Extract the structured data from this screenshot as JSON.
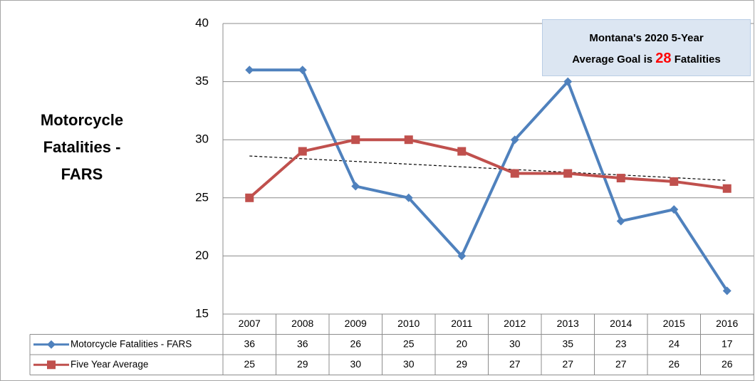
{
  "chart_data": {
    "type": "line",
    "title": "Motorcycle Fatalities - FARS",
    "annotation": {
      "line1": "Montana's 2020 5-Year",
      "line2_start": "Average Goal is",
      "goal": 28,
      "line2_end": "Fatalities"
    },
    "categories": [
      "2007",
      "2008",
      "2009",
      "2010",
      "2011",
      "2012",
      "2013",
      "2014",
      "2015",
      "2016"
    ],
    "series": [
      {
        "name": "Motorcycle Fatalities - FARS",
        "color": "#4f81bd",
        "marker": "diamond",
        "values": [
          36,
          36,
          26,
          25,
          20,
          30,
          35,
          23,
          24,
          17
        ]
      },
      {
        "name": "Five Year Average",
        "color": "#c0504d",
        "marker": "square",
        "values": [
          25,
          29,
          30,
          30,
          29,
          27.1,
          27.1,
          26.7,
          26.4,
          25.8
        ],
        "value_labels": [
          "25",
          "29",
          "30",
          "30",
          "29",
          "27",
          "27",
          "27",
          "26",
          "26"
        ]
      }
    ],
    "trendline": [
      28.6,
      26.5
    ],
    "ylim": [
      15,
      40
    ],
    "yticks": [
      15,
      20,
      25,
      30,
      35,
      40
    ],
    "grid": true
  }
}
